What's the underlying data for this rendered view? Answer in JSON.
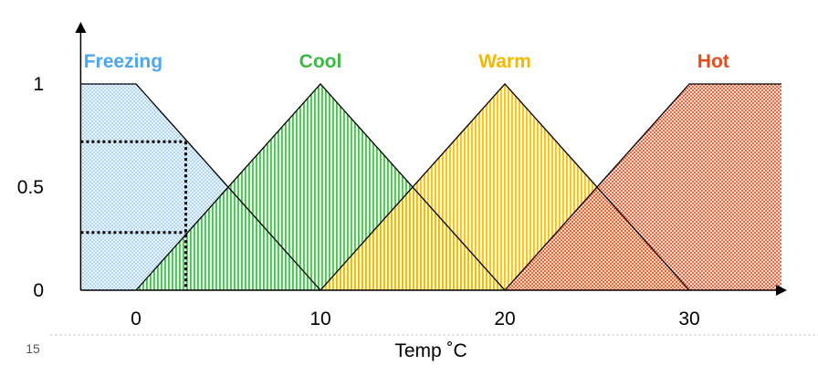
{
  "page_number": "15",
  "chart_data": {
    "type": "area",
    "xlabel": "Temp ˚C",
    "ylabel": "",
    "xlim": [
      -3,
      35
    ],
    "ylim": [
      0,
      1
    ],
    "x_ticks": [
      {
        "value": 0,
        "label": "0"
      },
      {
        "value": 10,
        "label": "10"
      },
      {
        "value": 20,
        "label": "20"
      },
      {
        "value": 30,
        "label": "30"
      }
    ],
    "y_ticks": [
      {
        "value": 0,
        "label": "0"
      },
      {
        "value": 0.5,
        "label": "0.5"
      },
      {
        "value": 1,
        "label": "1"
      }
    ],
    "grid": false,
    "legend": "none",
    "series": [
      {
        "name": "Freezing",
        "color": "#4da6f0",
        "points": [
          [
            -3,
            1
          ],
          [
            0,
            1
          ],
          [
            10,
            0
          ],
          [
            -3,
            0
          ]
        ]
      },
      {
        "name": "Cool",
        "color": "#3cb843",
        "points": [
          [
            0,
            0
          ],
          [
            10,
            1
          ],
          [
            20,
            0
          ]
        ]
      },
      {
        "name": "Warm",
        "color": "#f5b800",
        "points": [
          [
            10,
            0
          ],
          [
            20,
            1
          ],
          [
            30,
            0
          ]
        ]
      },
      {
        "name": "Hot",
        "color": "#e84a1e",
        "points": [
          [
            20,
            0
          ],
          [
            30,
            1
          ],
          [
            35,
            1
          ],
          [
            35,
            0
          ]
        ]
      }
    ],
    "annotations": {
      "crisp_input_x": 2.7,
      "membership_levels": [
        0.72,
        0.28
      ]
    }
  }
}
